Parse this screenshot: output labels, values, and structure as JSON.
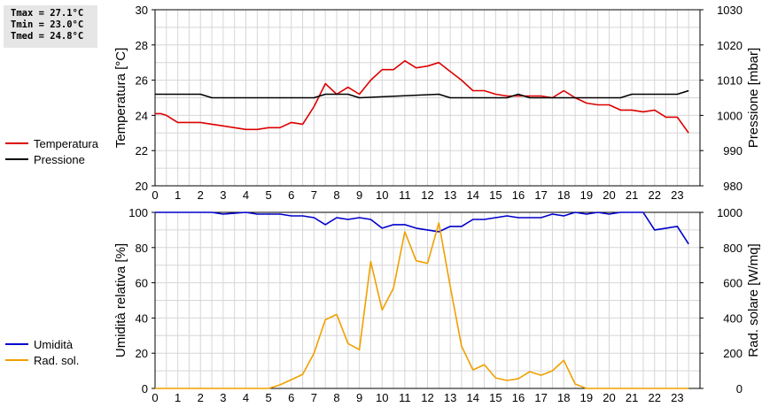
{
  "stats": {
    "tmax": "Tmax = 27.1°C",
    "tmin": "Tmin = 23.0°C",
    "tmed": "Tmed = 24.8°C"
  },
  "legend_top": [
    {
      "label": "Temperatura",
      "color": "#dd0000"
    },
    {
      "label": "Pressione",
      "color": "#000000"
    }
  ],
  "legend_bottom": [
    {
      "label": "Umidità",
      "color": "#0000cc"
    },
    {
      "label": "Rad. sol.",
      "color": "#f0a000"
    }
  ],
  "chart_data": [
    {
      "type": "line",
      "ylabel": "Temperatura [°C]",
      "y2label": "Pressione [mbar]",
      "ylim": [
        20,
        30
      ],
      "y2lim": [
        980,
        1030
      ],
      "yticks": [
        20,
        22,
        24,
        26,
        28,
        30
      ],
      "y2ticks": [
        980,
        990,
        1000,
        1010,
        1020,
        1030
      ],
      "xlim": [
        0,
        24
      ],
      "xticks": [
        0,
        1,
        2,
        3,
        4,
        5,
        6,
        7,
        8,
        9,
        10,
        11,
        12,
        13,
        14,
        15,
        16,
        17,
        18,
        19,
        20,
        21,
        22,
        23
      ],
      "grid": true,
      "series": [
        {
          "name": "Temperatura",
          "axis": "left",
          "color": "#dd0000",
          "x": [
            0,
            0.25,
            0.5,
            1,
            1.5,
            2,
            2.5,
            3,
            3.5,
            4,
            4.5,
            5,
            5.5,
            6,
            6.5,
            7,
            7.5,
            8,
            8.5,
            9,
            9.5,
            10,
            10.5,
            11,
            11.5,
            12,
            12.5,
            13,
            13.5,
            14,
            14.5,
            15,
            15.5,
            16,
            16.5,
            17,
            17.5,
            18,
            18.5,
            19,
            19.5,
            20,
            20.5,
            21,
            21.5,
            22,
            22.5,
            23,
            23.5
          ],
          "values": [
            24.1,
            24.1,
            24.0,
            23.6,
            23.6,
            23.6,
            23.5,
            23.4,
            23.3,
            23.2,
            23.2,
            23.3,
            23.3,
            23.6,
            23.5,
            24.5,
            25.8,
            25.2,
            25.6,
            25.2,
            26.0,
            26.6,
            26.6,
            27.1,
            26.7,
            26.8,
            27.0,
            26.5,
            26.0,
            25.4,
            25.4,
            25.2,
            25.1,
            25.1,
            25.1,
            25.1,
            25.0,
            25.4,
            25.0,
            24.7,
            24.6,
            24.6,
            24.3,
            24.3,
            24.2,
            24.3,
            23.9,
            23.9,
            23.0
          ]
        },
        {
          "name": "Pressione",
          "axis": "right",
          "color": "#000000",
          "x": [
            0,
            2,
            2.5,
            3,
            7,
            7.5,
            8.5,
            9,
            12.5,
            13,
            15.5,
            16,
            16.5,
            18,
            18.5,
            20.5,
            21,
            23,
            23.5
          ],
          "values": [
            1006,
            1006,
            1005,
            1005,
            1005,
            1006,
            1006,
            1005,
            1006,
            1005,
            1005,
            1006,
            1005,
            1005,
            1005,
            1005,
            1006,
            1006,
            1007
          ]
        }
      ]
    },
    {
      "type": "line",
      "ylabel": "Umidità relativa [%]",
      "y2label": "Rad. solare [W/mq]",
      "ylim": [
        0,
        100
      ],
      "y2lim": [
        0,
        1000
      ],
      "yticks": [
        0,
        20,
        40,
        60,
        80,
        100
      ],
      "y2ticks": [
        0,
        200,
        400,
        600,
        800,
        1000
      ],
      "xlim": [
        0,
        24
      ],
      "xticks": [
        0,
        1,
        2,
        3,
        4,
        5,
        6,
        7,
        8,
        9,
        10,
        11,
        12,
        13,
        14,
        15,
        16,
        17,
        18,
        19,
        20,
        21,
        22,
        23
      ],
      "grid": true,
      "series": [
        {
          "name": "Umidità",
          "axis": "left",
          "color": "#0000cc",
          "x": [
            0,
            1,
            2,
            2.5,
            3,
            4,
            4.5,
            5,
            5.5,
            6,
            6.5,
            7,
            7.5,
            8,
            8.5,
            9,
            9.5,
            10,
            10.5,
            11,
            11.5,
            12,
            12.5,
            13,
            13.5,
            14,
            14.5,
            15,
            15.5,
            16,
            16.5,
            17,
            17.5,
            18,
            18.5,
            19,
            19.5,
            20,
            20.5,
            21,
            21.5,
            22,
            22.5,
            23,
            23.5
          ],
          "values": [
            100,
            100,
            100,
            100,
            99,
            100,
            99,
            99,
            99,
            98,
            98,
            97,
            93,
            97,
            96,
            97,
            96,
            91,
            93,
            93,
            91,
            90,
            89,
            92,
            92,
            96,
            96,
            97,
            98,
            97,
            97,
            97,
            99,
            98,
            100,
            99,
            100,
            99,
            100,
            100,
            100,
            90,
            91,
            92,
            82
          ]
        },
        {
          "name": "Rad. sol.",
          "axis": "right",
          "color": "#f0a000",
          "x": [
            0,
            5,
            5.5,
            6,
            6.5,
            7,
            7.5,
            8,
            8.5,
            9,
            9.5,
            10,
            10.5,
            11,
            11.5,
            12,
            12.5,
            13,
            13.5,
            14,
            14.5,
            15,
            15.5,
            16,
            16.5,
            17,
            17.5,
            18,
            18.5,
            19,
            23.5
          ],
          "values": [
            0,
            0,
            20,
            50,
            80,
            200,
            390,
            420,
            255,
            220,
            720,
            445,
            570,
            890,
            725,
            710,
            940,
            580,
            240,
            105,
            135,
            60,
            45,
            55,
            95,
            75,
            100,
            160,
            25,
            0,
            0
          ]
        }
      ]
    }
  ]
}
